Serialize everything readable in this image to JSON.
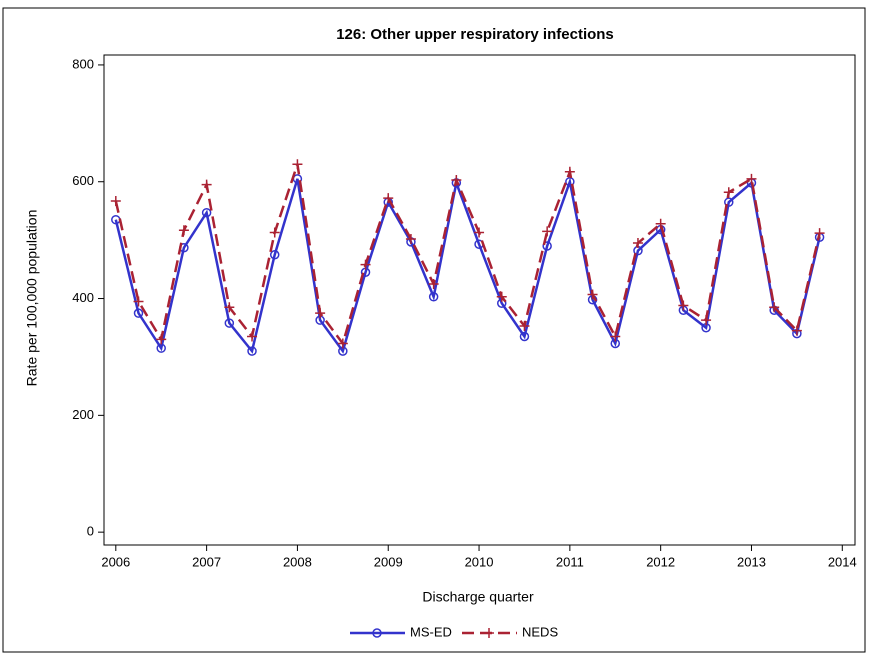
{
  "chart_data": {
    "type": "line",
    "title": "126: Other upper respiratory infections",
    "xlabel": "Discharge quarter",
    "ylabel": "Rate per 100,000 population",
    "x": [
      2006,
      2006.25,
      2006.5,
      2006.75,
      2007,
      2007.25,
      2007.5,
      2007.75,
      2008,
      2008.25,
      2008.5,
      2008.75,
      2009,
      2009.25,
      2009.5,
      2009.75,
      2010,
      2010.25,
      2010.5,
      2010.75,
      2011,
      2011.25,
      2011.5,
      2011.75,
      2012,
      2012.25,
      2012.5,
      2012.75,
      2013,
      2013.25,
      2013.5,
      2013.75
    ],
    "series": [
      {
        "name": "MS-ED",
        "color": "#3333cc",
        "line_style": "solid",
        "marker": "circle",
        "values": [
          535,
          375,
          315,
          487,
          547,
          358,
          310,
          475,
          605,
          363,
          310,
          445,
          565,
          497,
          403,
          598,
          493,
          392,
          335,
          490,
          600,
          398,
          323,
          482,
          518,
          380,
          350,
          565,
          598,
          380,
          340,
          505
        ]
      },
      {
        "name": "NEDS",
        "color": "#aa2233",
        "line_style": "dashed",
        "marker": "plus",
        "values": [
          567,
          395,
          330,
          517,
          595,
          385,
          335,
          513,
          630,
          375,
          323,
          458,
          572,
          502,
          425,
          603,
          513,
          403,
          353,
          515,
          617,
          407,
          335,
          495,
          528,
          388,
          363,
          582,
          605,
          385,
          345,
          512
        ]
      }
    ],
    "xlim": [
      2005.87,
      2014.14
    ],
    "xticks": [
      2006,
      2007,
      2008,
      2009,
      2010,
      2011,
      2012,
      2013,
      2014
    ],
    "ylim": [
      -22,
      817
    ],
    "yticks": [
      0,
      200,
      400,
      600,
      800
    ],
    "legend": "bottom"
  }
}
